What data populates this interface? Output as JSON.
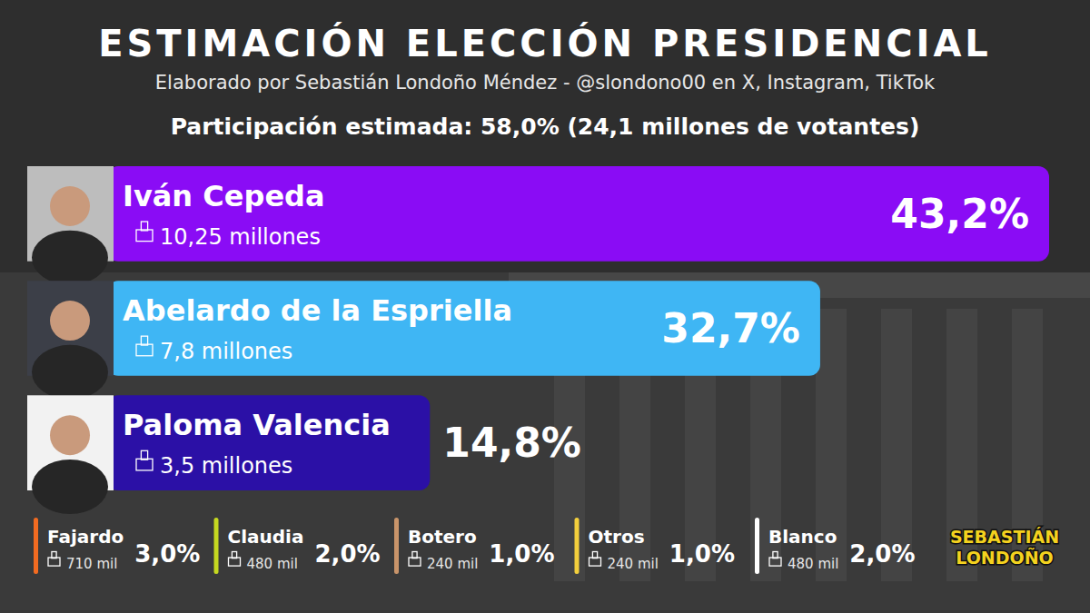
{
  "chart_data": {
    "type": "bar",
    "orientation": "horizontal",
    "title": "ESTIMACIÓN ELECCIÓN PRESIDENCIAL",
    "subtitle": "Elaborado por Sebastián Londoño Méndez - @slondono00 en X, Instagram, TikTok",
    "annotations": [
      "Participación estimada: 58,0% (24,1 millones de votantes)",
      "SEBASTIÁN LONDOÑO"
    ],
    "categories": [
      "Iván Cepeda",
      "Abelardo de la Espriella",
      "Paloma Valencia"
    ],
    "values": [
      43.2,
      32.7,
      14.8
    ],
    "value_labels": [
      "43,2%",
      "32,7%",
      "14,8%"
    ],
    "colors": [
      "#8a0cf5",
      "#3fb6f4",
      "#2b10a6"
    ],
    "votes": [
      10250000,
      7800000,
      3500000
    ],
    "vote_labels": [
      "10,25 millones",
      "7,8 millones",
      "3,5 millones"
    ],
    "data_labels": true,
    "tick_labels": false,
    "grid": false,
    "minor": {
      "categories": [
        "Fajardo",
        "Claudia",
        "Botero",
        "Otros",
        "Blanco"
      ],
      "values": [
        3.0,
        2.0,
        1.0,
        1.0,
        2.0
      ],
      "value_labels": [
        "3,0%",
        "2,0%",
        "1,0%",
        "1,0%",
        "2,0%"
      ],
      "colors": [
        "#f26b21",
        "#c5d820",
        "#c8946a",
        "#f3cf3c",
        "#ffffff"
      ],
      "votes": [
        710000,
        480000,
        240000,
        240000,
        480000
      ],
      "vote_labels": [
        "710 mil",
        "480 mil",
        "240 mil",
        "240 mil",
        "480 mil"
      ]
    }
  }
}
